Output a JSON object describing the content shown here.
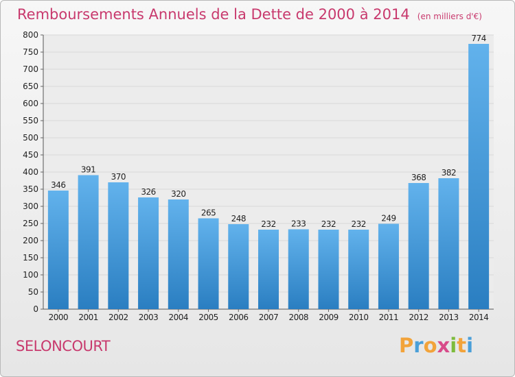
{
  "title": "Remboursements Annuels de la Dette de 2000 à 2014",
  "unit": "(en milliers d'€)",
  "location": "SELONCOURT",
  "brand": {
    "text": "Proxiti",
    "letters": [
      {
        "char": "P",
        "color": "#f2a33a"
      },
      {
        "char": "r",
        "color": "#4a9fd8"
      },
      {
        "char": "o",
        "color": "#f2a33a"
      },
      {
        "char": "x",
        "color": "#d84b8a"
      },
      {
        "char": "i",
        "color": "#7dbb3c"
      },
      {
        "char": "t",
        "color": "#f2a33a"
      },
      {
        "char": "i",
        "color": "#4a9fd8"
      }
    ]
  },
  "colors": {
    "bar_top": "#62b2ec",
    "bar_bottom": "#2a7ec1",
    "title": "#c8396d",
    "grid": "#d8d8d8"
  },
  "chart_data": {
    "type": "bar",
    "categories": [
      "2000",
      "2001",
      "2002",
      "2003",
      "2004",
      "2005",
      "2006",
      "2007",
      "2008",
      "2009",
      "2010",
      "2011",
      "2012",
      "2013",
      "2014"
    ],
    "values": [
      346,
      391,
      370,
      326,
      320,
      265,
      248,
      232,
      233,
      232,
      232,
      249,
      368,
      382,
      774
    ],
    "ylim": [
      0,
      800
    ],
    "ytick_step": 50,
    "grid": true,
    "data_labels": true,
    "xlabel": "",
    "ylabel": ""
  }
}
